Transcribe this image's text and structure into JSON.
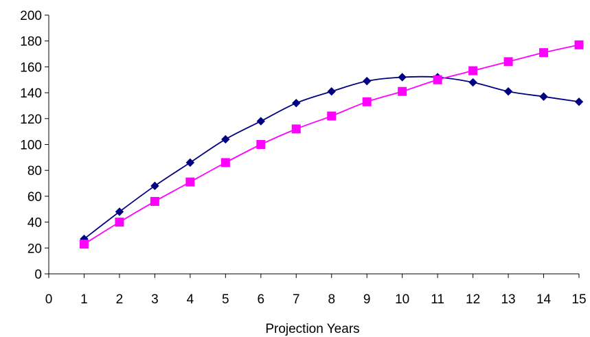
{
  "chart_data": {
    "type": "line",
    "title": "",
    "xlabel": "Projection Years",
    "ylabel": "",
    "xlim": [
      0,
      15
    ],
    "ylim": [
      0,
      200
    ],
    "x_ticks": [
      0,
      1,
      2,
      3,
      4,
      5,
      6,
      7,
      8,
      9,
      10,
      11,
      12,
      13,
      14,
      15
    ],
    "y_ticks": [
      0,
      20,
      40,
      60,
      80,
      100,
      120,
      140,
      160,
      180,
      200
    ],
    "grid": false,
    "legend": "none",
    "x": [
      1,
      2,
      3,
      4,
      5,
      6,
      7,
      8,
      9,
      10,
      11,
      12,
      13,
      14,
      15
    ],
    "series": [
      {
        "color": "#000080",
        "marker": "diamond",
        "smooth": true,
        "values": [
          27,
          48,
          68,
          86,
          104,
          118,
          132,
          141,
          149,
          152,
          152,
          148,
          141,
          137,
          133
        ]
      },
      {
        "color": "#FF00FF",
        "marker": "square",
        "smooth": true,
        "values": [
          23,
          40,
          56,
          71,
          86,
          100,
          112,
          122,
          133,
          141,
          150,
          157,
          164,
          171,
          177
        ]
      }
    ]
  }
}
